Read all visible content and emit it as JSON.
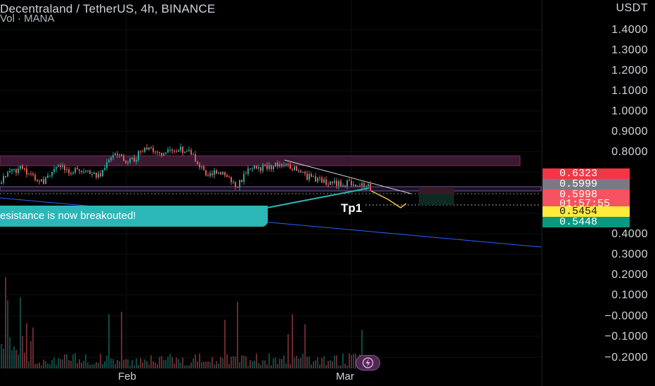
{
  "header": {
    "symbol_line": "Decentraland / TetherUS, 4h, BINANCE",
    "volume_line": "Vol · MANA"
  },
  "price_axis": {
    "currency": "USDT",
    "ticks": [
      "1.4000",
      "1.3000",
      "1.2000",
      "1.1000",
      "1.0000",
      "0.9000",
      "0.8000",
      "0.4000",
      "0.3000",
      "0.2000",
      "0.1000",
      "−0.0000",
      "−0.1000",
      "−0.2000"
    ]
  },
  "price_badges": [
    {
      "value": "0.6323",
      "color": "#f23645",
      "text_color": "#ffffff"
    },
    {
      "value": "0.5999",
      "color": "#787b86",
      "text_color": "#ffffff"
    },
    {
      "value": "0.5998",
      "sub": "01:57:55",
      "color": "#f7525f",
      "text_color": "#ffffff"
    },
    {
      "value": "0.5454",
      "color": "#ffeb3b",
      "text_color": "#131722"
    },
    {
      "value": "0.5448",
      "color": "#089981",
      "text_color": "#ffffff"
    }
  ],
  "time_axis": {
    "labels": [
      "Feb",
      "Mar"
    ]
  },
  "annotations": {
    "callout": "esistance is now breakouted!",
    "target_label": "Tp1"
  },
  "colors": {
    "up": "#26a69a",
    "down": "#ef5350",
    "resistance_zone": "#3a1a32",
    "trend_line": "#2962ff",
    "callout": "#2bb7b7"
  },
  "icons": {
    "flash": "lightning-icon"
  }
}
